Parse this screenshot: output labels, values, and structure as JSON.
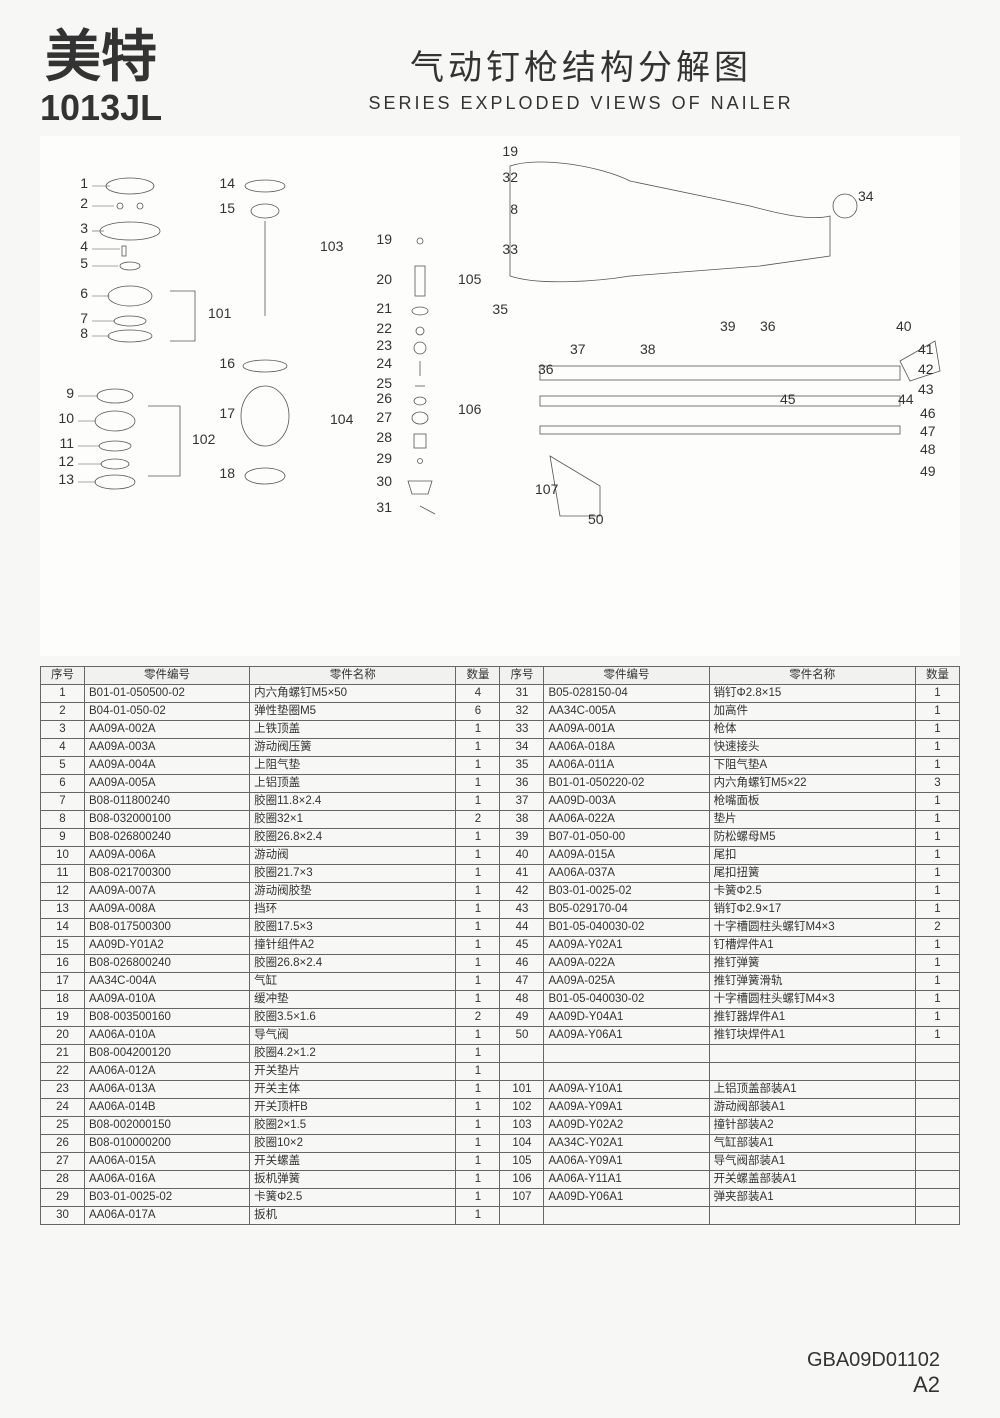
{
  "brand": {
    "name": "美特",
    "model": "1013JL"
  },
  "title": {
    "cn": "气动钉枪结构分解图",
    "en": "SERIES EXPLODED VIEWS OF NAILER"
  },
  "footer": {
    "code": "GBA09D01102",
    "rev": "A2"
  },
  "table": {
    "headers": {
      "seq": "序号",
      "code": "零件编号",
      "name": "零件名称",
      "qty": "数量"
    },
    "rows_left": [
      {
        "seq": "1",
        "code": "B01-01-050500-02",
        "name": "内六角螺钉M5×50",
        "qty": "4"
      },
      {
        "seq": "2",
        "code": "B04-01-050-02",
        "name": "弹性垫圈M5",
        "qty": "6"
      },
      {
        "seq": "3",
        "code": "AA09A-002A",
        "name": "上铁顶盖",
        "qty": "1"
      },
      {
        "seq": "4",
        "code": "AA09A-003A",
        "name": "游动阀压簧",
        "qty": "1"
      },
      {
        "seq": "5",
        "code": "AA09A-004A",
        "name": "上阻气垫",
        "qty": "1"
      },
      {
        "seq": "6",
        "code": "AA09A-005A",
        "name": "上铝顶盖",
        "qty": "1"
      },
      {
        "seq": "7",
        "code": "B08-011800240",
        "name": "胶圈11.8×2.4",
        "qty": "1"
      },
      {
        "seq": "8",
        "code": "B08-032000100",
        "name": "胶圈32×1",
        "qty": "2"
      },
      {
        "seq": "9",
        "code": "B08-026800240",
        "name": "胶圈26.8×2.4",
        "qty": "1"
      },
      {
        "seq": "10",
        "code": "AA09A-006A",
        "name": "游动阀",
        "qty": "1"
      },
      {
        "seq": "11",
        "code": "B08-021700300",
        "name": "胶圈21.7×3",
        "qty": "1"
      },
      {
        "seq": "12",
        "code": "AA09A-007A",
        "name": "游动阀胶垫",
        "qty": "1"
      },
      {
        "seq": "13",
        "code": "AA09A-008A",
        "name": "挡环",
        "qty": "1"
      },
      {
        "seq": "14",
        "code": "B08-017500300",
        "name": "胶圈17.5×3",
        "qty": "1"
      },
      {
        "seq": "15",
        "code": "AA09D-Y01A2",
        "name": "撞针组件A2",
        "qty": "1"
      },
      {
        "seq": "16",
        "code": "B08-026800240",
        "name": "胶圈26.8×2.4",
        "qty": "1"
      },
      {
        "seq": "17",
        "code": "AA34C-004A",
        "name": "气缸",
        "qty": "1"
      },
      {
        "seq": "18",
        "code": "AA09A-010A",
        "name": "缓冲垫",
        "qty": "1"
      },
      {
        "seq": "19",
        "code": "B08-003500160",
        "name": "胶圈3.5×1.6",
        "qty": "2"
      },
      {
        "seq": "20",
        "code": "AA06A-010A",
        "name": "导气阀",
        "qty": "1"
      },
      {
        "seq": "21",
        "code": "B08-004200120",
        "name": "胶圈4.2×1.2",
        "qty": "1"
      },
      {
        "seq": "22",
        "code": "AA06A-012A",
        "name": "开关垫片",
        "qty": "1"
      },
      {
        "seq": "23",
        "code": "AA06A-013A",
        "name": "开关主体",
        "qty": "1"
      },
      {
        "seq": "24",
        "code": "AA06A-014B",
        "name": "开关顶杆B",
        "qty": "1"
      },
      {
        "seq": "25",
        "code": "B08-002000150",
        "name": "胶圈2×1.5",
        "qty": "1"
      },
      {
        "seq": "26",
        "code": "B08-010000200",
        "name": "胶圈10×2",
        "qty": "1"
      },
      {
        "seq": "27",
        "code": "AA06A-015A",
        "name": "开关螺盖",
        "qty": "1"
      },
      {
        "seq": "28",
        "code": "AA06A-016A",
        "name": "扳机弹簧",
        "qty": "1"
      },
      {
        "seq": "29",
        "code": "B03-01-0025-02",
        "name": "卡簧Φ2.5",
        "qty": "1"
      },
      {
        "seq": "30",
        "code": "AA06A-017A",
        "name": "扳机",
        "qty": "1"
      }
    ],
    "rows_right": [
      {
        "seq": "31",
        "code": "B05-028150-04",
        "name": "销钉Φ2.8×15",
        "qty": "1"
      },
      {
        "seq": "32",
        "code": "AA34C-005A",
        "name": "加高件",
        "qty": "1"
      },
      {
        "seq": "33",
        "code": "AA09A-001A",
        "name": "枪体",
        "qty": "1"
      },
      {
        "seq": "34",
        "code": "AA06A-018A",
        "name": "快速接头",
        "qty": "1"
      },
      {
        "seq": "35",
        "code": "AA06A-011A",
        "name": "下阻气垫A",
        "qty": "1"
      },
      {
        "seq": "36",
        "code": "B01-01-050220-02",
        "name": "内六角螺钉M5×22",
        "qty": "3"
      },
      {
        "seq": "37",
        "code": "AA09D-003A",
        "name": "枪嘴面板",
        "qty": "1"
      },
      {
        "seq": "38",
        "code": "AA06A-022A",
        "name": "垫片",
        "qty": "1"
      },
      {
        "seq": "39",
        "code": "B07-01-050-00",
        "name": "防松螺母M5",
        "qty": "1"
      },
      {
        "seq": "40",
        "code": "AA09A-015A",
        "name": "尾扣",
        "qty": "1"
      },
      {
        "seq": "41",
        "code": "AA06A-037A",
        "name": "尾扣扭簧",
        "qty": "1"
      },
      {
        "seq": "42",
        "code": "B03-01-0025-02",
        "name": "卡簧Φ2.5",
        "qty": "1"
      },
      {
        "seq": "43",
        "code": "B05-029170-04",
        "name": "销钉Φ2.9×17",
        "qty": "1"
      },
      {
        "seq": "44",
        "code": "B01-05-040030-02",
        "name": "十字槽圆柱头螺钉M4×3",
        "qty": "2"
      },
      {
        "seq": "45",
        "code": "AA09A-Y02A1",
        "name": "钉槽焊件A1",
        "qty": "1"
      },
      {
        "seq": "46",
        "code": "AA09A-022A",
        "name": "推钉弹簧",
        "qty": "1"
      },
      {
        "seq": "47",
        "code": "AA09A-025A",
        "name": "推钉弹簧滑轨",
        "qty": "1"
      },
      {
        "seq": "48",
        "code": "B01-05-040030-02",
        "name": "十字槽圆柱头螺钉M4×3",
        "qty": "1"
      },
      {
        "seq": "49",
        "code": "AA09D-Y04A1",
        "name": "推钉器焊件A1",
        "qty": "1"
      },
      {
        "seq": "50",
        "code": "AA09A-Y06A1",
        "name": "推钉块焊件A1",
        "qty": "1"
      },
      {
        "seq": "",
        "code": "",
        "name": "",
        "qty": ""
      },
      {
        "seq": "",
        "code": "",
        "name": "",
        "qty": ""
      },
      {
        "seq": "101",
        "code": "AA09A-Y10A1",
        "name": "上铝顶盖部装A1",
        "qty": ""
      },
      {
        "seq": "102",
        "code": "AA09A-Y09A1",
        "name": "游动阀部装A1",
        "qty": ""
      },
      {
        "seq": "103",
        "code": "AA09D-Y02A2",
        "name": "撞针部装A2",
        "qty": ""
      },
      {
        "seq": "104",
        "code": "AA34C-Y02A1",
        "name": "气缸部装A1",
        "qty": ""
      },
      {
        "seq": "105",
        "code": "AA06A-Y09A1",
        "name": "导气阀部装A1",
        "qty": ""
      },
      {
        "seq": "106",
        "code": "AA06A-Y11A1",
        "name": "开关螺盖部装A1",
        "qty": ""
      },
      {
        "seq": "107",
        "code": "AA09D-Y06A1",
        "name": "弹夹部装A1",
        "qty": ""
      }
    ]
  },
  "callouts": {
    "left_group": [
      "1",
      "2",
      "3",
      "4",
      "5",
      "6",
      "7",
      "8",
      "9",
      "10",
      "11",
      "12",
      "13"
    ],
    "mid_group": [
      "14",
      "15",
      "16",
      "17",
      "18"
    ],
    "center_group": [
      "19",
      "20",
      "21",
      "22",
      "23",
      "24",
      "25",
      "26",
      "27",
      "28",
      "29",
      "30",
      "31"
    ],
    "top_right": [
      "19",
      "32",
      "8",
      "33",
      "34"
    ],
    "right_group": [
      "35",
      "36",
      "37",
      "38",
      "39",
      "40",
      "41",
      "42",
      "43",
      "44",
      "45",
      "46",
      "47",
      "48",
      "49",
      "50"
    ],
    "assemblies": [
      "101",
      "102",
      "103",
      "104",
      "105",
      "106",
      "107"
    ]
  }
}
